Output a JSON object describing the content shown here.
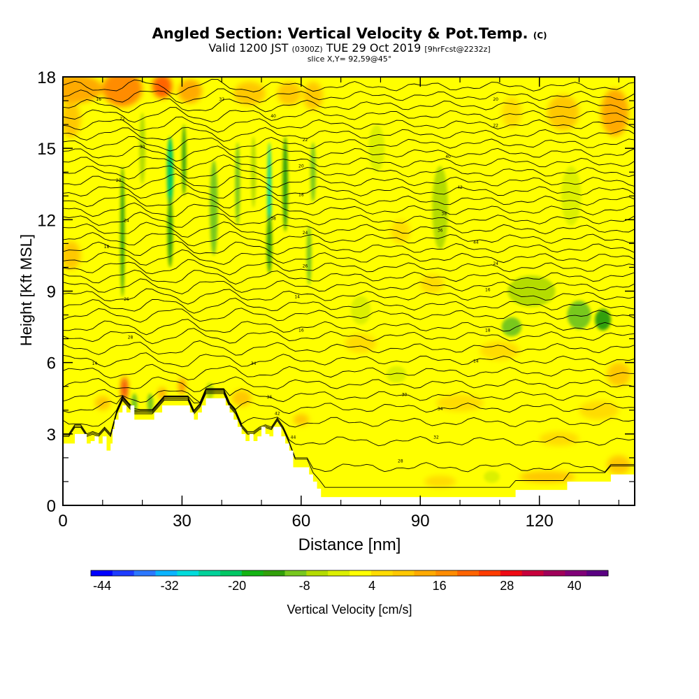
{
  "chart_data": {
    "type": "heatmap",
    "title": "Angled Section: Vertical Velocity & Pot.Temp.",
    "title_suffix": "(C)",
    "subtitle_main": "Valid 1200 JST",
    "subtitle_utc": "(0300Z)",
    "subtitle_date": "TUE 29 Oct 2019",
    "subtitle_fcst": "[9hrFcst@2232z]",
    "slice": "slice X,Y= 92,59@45°",
    "xlabel": "Distance [nm]",
    "ylabel": "Height [Kft MSL]",
    "xlim": [
      0,
      144
    ],
    "ylim": [
      0,
      18
    ],
    "xticks": [
      0,
      30,
      60,
      90,
      120
    ],
    "yticks": [
      0,
      3,
      6,
      9,
      12,
      15,
      18
    ],
    "colorbar": {
      "title": "Vertical Velocity [cm/s]",
      "labels": [
        "-44",
        "-32",
        "-20",
        "-8",
        "4",
        "16",
        "28",
        "40"
      ],
      "label_values": [
        -44,
        -32,
        -20,
        -8,
        4,
        16,
        28,
        40
      ],
      "min": -46,
      "max": 46,
      "colors": [
        "#0000ff",
        "#1e3cff",
        "#2c78ff",
        "#0ab4ff",
        "#00dcdc",
        "#00d29a",
        "#00c864",
        "#14b414",
        "#32a00a",
        "#78c81e",
        "#b4dc00",
        "#dcf000",
        "#ffff00",
        "#ffdc00",
        "#ffc800",
        "#ffaa00",
        "#ff8c00",
        "#ff6400",
        "#ff3c00",
        "#f00a14",
        "#c8003c",
        "#a0005a",
        "#800078",
        "#5a0082"
      ]
    },
    "background_w": 1,
    "updrafts": [
      {
        "x": 3,
        "y": 17.5,
        "w": 14,
        "h": 1.2,
        "v": 14
      },
      {
        "x": 15,
        "y": 17.5,
        "w": 10,
        "h": 1.5,
        "v": 16
      },
      {
        "x": 25,
        "y": 17.6,
        "w": 5,
        "h": 1.0,
        "v": 20
      },
      {
        "x": 32,
        "y": 17.4,
        "w": 6,
        "h": 1.0,
        "v": 14
      },
      {
        "x": 47,
        "y": 17.3,
        "w": 8,
        "h": 1.0,
        "v": 11
      },
      {
        "x": 57,
        "y": 17.3,
        "w": 6,
        "h": 1.0,
        "v": 10
      },
      {
        "x": 63,
        "y": 17.2,
        "w": 5,
        "h": 1.2,
        "v": 10
      },
      {
        "x": 2,
        "y": 16.2,
        "w": 5,
        "h": 1.5,
        "v": 10
      },
      {
        "x": 139,
        "y": 16.5,
        "w": 7,
        "h": 2.0,
        "v": 12
      },
      {
        "x": 126,
        "y": 16.5,
        "w": 8,
        "h": 1.5,
        "v": 8
      },
      {
        "x": 113,
        "y": 16.5,
        "w": 5,
        "h": 1.3,
        "v": 6
      },
      {
        "x": 2,
        "y": 10.5,
        "w": 5,
        "h": 1.2,
        "v": 9
      },
      {
        "x": 15.5,
        "y": 4.9,
        "w": 1.3,
        "h": 1.0,
        "v": 28
      },
      {
        "x": 30,
        "y": 5.0,
        "w": 1.6,
        "h": 0.7,
        "v": 18
      },
      {
        "x": 25,
        "y": 4.7,
        "w": 2.0,
        "h": 0.5,
        "v": 12
      },
      {
        "x": 10,
        "y": 4.3,
        "w": 4,
        "h": 0.6,
        "v": 10
      },
      {
        "x": 45,
        "y": 4.5,
        "w": 5,
        "h": 0.7,
        "v": 9
      },
      {
        "x": 60,
        "y": 3.6,
        "w": 4,
        "h": 0.5,
        "v": 8
      },
      {
        "x": 93,
        "y": 9.3,
        "w": 6,
        "h": 0.8,
        "v": 6
      },
      {
        "x": 85,
        "y": 11.5,
        "w": 5,
        "h": 1.0,
        "v": 6
      },
      {
        "x": 75,
        "y": 6.8,
        "w": 8,
        "h": 0.8,
        "v": 6
      },
      {
        "x": 110,
        "y": 6.5,
        "w": 10,
        "h": 0.8,
        "v": 6
      },
      {
        "x": 140,
        "y": 5.5,
        "w": 6,
        "h": 1.0,
        "v": 8
      },
      {
        "x": 100,
        "y": 4.3,
        "w": 12,
        "h": 0.7,
        "v": 6
      },
      {
        "x": 135,
        "y": 4.0,
        "w": 10,
        "h": 0.8,
        "v": 7
      },
      {
        "x": 125,
        "y": 2.8,
        "w": 10,
        "h": 0.6,
        "v": 6
      },
      {
        "x": 122,
        "y": 1.2,
        "w": 14,
        "h": 0.5,
        "v": 8
      },
      {
        "x": 140,
        "y": 1.7,
        "w": 6,
        "h": 0.8,
        "v": 8
      },
      {
        "x": 95,
        "y": 1.0,
        "w": 8,
        "h": 0.5,
        "v": 6
      }
    ],
    "downdrafts": [
      {
        "x": 15,
        "y": 11.5,
        "w": 1.0,
        "h": 5.5,
        "v": -12
      },
      {
        "x": 27,
        "y": 14.0,
        "w": 1.6,
        "h": 3.0,
        "v": -22
      },
      {
        "x": 27,
        "y": 11.5,
        "w": 1.3,
        "h": 3.0,
        "v": -12
      },
      {
        "x": 30.5,
        "y": 14.5,
        "w": 1.0,
        "h": 3.0,
        "v": -14
      },
      {
        "x": 38,
        "y": 12.5,
        "w": 2.0,
        "h": 4.0,
        "v": -10
      },
      {
        "x": 52,
        "y": 13.0,
        "w": 1.0,
        "h": 4.5,
        "v": -26
      },
      {
        "x": 52,
        "y": 11.0,
        "w": 1.3,
        "h": 2.5,
        "v": -14
      },
      {
        "x": 56,
        "y": 13.5,
        "w": 1.3,
        "h": 4.0,
        "v": -14
      },
      {
        "x": 63,
        "y": 14.0,
        "w": 1.3,
        "h": 2.5,
        "v": -10
      },
      {
        "x": 62,
        "y": 10.5,
        "w": 1.2,
        "h": 2.5,
        "v": -8
      },
      {
        "x": 44,
        "y": 13.5,
        "w": 1.2,
        "h": 3.5,
        "v": -8
      },
      {
        "x": 48,
        "y": 14.0,
        "w": 1.2,
        "h": 3.0,
        "v": -7
      },
      {
        "x": 20,
        "y": 15.0,
        "w": 1.5,
        "h": 3.0,
        "v": -6
      },
      {
        "x": 136,
        "y": 7.8,
        "w": 4,
        "h": 0.9,
        "v": -14
      },
      {
        "x": 130,
        "y": 8.0,
        "w": 6,
        "h": 1.2,
        "v": -8
      },
      {
        "x": 113,
        "y": 7.5,
        "w": 5,
        "h": 0.8,
        "v": -8
      },
      {
        "x": 118,
        "y": 9.0,
        "w": 12,
        "h": 1.3,
        "v": -4
      },
      {
        "x": 95,
        "y": 12.5,
        "w": 4,
        "h": 3.5,
        "v": -4
      },
      {
        "x": 79,
        "y": 15.0,
        "w": 4,
        "h": 2.0,
        "v": -3
      },
      {
        "x": 128,
        "y": 13.0,
        "w": 5,
        "h": 2.5,
        "v": -3
      },
      {
        "x": 75,
        "y": 8.2,
        "w": 5,
        "h": 1.2,
        "v": -3
      },
      {
        "x": 18,
        "y": 4.3,
        "w": 1.5,
        "h": 0.8,
        "v": -8
      },
      {
        "x": 22,
        "y": 4.3,
        "w": 1.5,
        "h": 0.8,
        "v": -8
      },
      {
        "x": 37,
        "y": 4.8,
        "w": 2.0,
        "h": 0.7,
        "v": -6
      },
      {
        "x": 84,
        "y": 5.5,
        "w": 5,
        "h": 0.7,
        "v": -3
      },
      {
        "x": 108,
        "y": 1.2,
        "w": 4,
        "h": 0.5,
        "v": -3
      }
    ],
    "terrain": [
      [
        0,
        2.6
      ],
      [
        3,
        2.6
      ],
      [
        3,
        3.0
      ],
      [
        6,
        3.0
      ],
      [
        6,
        2.6
      ],
      [
        7,
        2.6
      ],
      [
        7,
        2.7
      ],
      [
        8,
        2.7
      ],
      [
        8,
        2.9
      ],
      [
        9,
        2.9
      ],
      [
        9,
        2.6
      ],
      [
        10,
        2.6
      ],
      [
        10,
        2.9
      ],
      [
        11,
        2.9
      ],
      [
        11,
        2.3
      ],
      [
        12,
        2.3
      ],
      [
        12,
        2.6
      ],
      [
        12.5,
        2.6
      ],
      [
        12.5,
        3.2
      ],
      [
        13,
        3.2
      ],
      [
        13,
        3.6
      ],
      [
        14,
        3.6
      ],
      [
        14,
        3.9
      ],
      [
        15,
        3.9
      ],
      [
        15,
        4.2
      ],
      [
        16,
        4.2
      ],
      [
        16,
        3.9
      ],
      [
        17,
        3.9
      ],
      [
        17,
        4.2
      ],
      [
        18,
        4.2
      ],
      [
        18,
        3.6
      ],
      [
        23,
        3.6
      ],
      [
        23,
        3.9
      ],
      [
        25,
        3.9
      ],
      [
        25,
        4.2
      ],
      [
        32,
        4.2
      ],
      [
        32,
        3.9
      ],
      [
        33,
        3.9
      ],
      [
        33,
        3.6
      ],
      [
        34,
        3.6
      ],
      [
        34,
        3.9
      ],
      [
        35,
        3.9
      ],
      [
        35,
        4.2
      ],
      [
        36,
        4.2
      ],
      [
        36,
        4.5
      ],
      [
        41,
        4.5
      ],
      [
        41,
        4.2
      ],
      [
        42,
        4.2
      ],
      [
        42,
        3.9
      ],
      [
        43,
        3.9
      ],
      [
        43,
        3.6
      ],
      [
        44,
        3.6
      ],
      [
        44,
        3.3
      ],
      [
        45,
        3.3
      ],
      [
        45,
        3.0
      ],
      [
        46,
        3.0
      ],
      [
        46,
        2.7
      ],
      [
        47,
        2.7
      ],
      [
        47,
        3.0
      ],
      [
        48,
        3.0
      ],
      [
        48,
        2.7
      ],
      [
        49,
        2.7
      ],
      [
        49,
        2.9
      ],
      [
        50,
        2.9
      ],
      [
        50,
        3.3
      ],
      [
        51,
        3.3
      ],
      [
        51,
        3.0
      ],
      [
        52,
        3.0
      ],
      [
        52,
        2.9
      ],
      [
        53,
        2.9
      ],
      [
        53,
        3.3
      ],
      [
        55,
        3.3
      ],
      [
        55,
        2.9
      ],
      [
        56,
        2.9
      ],
      [
        56,
        2.6
      ],
      [
        57,
        2.6
      ],
      [
        57,
        2.3
      ],
      [
        58,
        2.3
      ],
      [
        58,
        1.6
      ],
      [
        62,
        1.6
      ],
      [
        62,
        1.3
      ],
      [
        63,
        1.3
      ],
      [
        63,
        1.0
      ],
      [
        64,
        1.0
      ],
      [
        64,
        0.7
      ],
      [
        65,
        0.7
      ],
      [
        65,
        0.35
      ],
      [
        114,
        0.35
      ],
      [
        114,
        0.65
      ],
      [
        127,
        0.65
      ],
      [
        127,
        1.0
      ],
      [
        138,
        1.0
      ],
      [
        138,
        1.3
      ],
      [
        144,
        1.3
      ]
    ],
    "isentrope_heights": [
      0.5,
      1.6,
      2.7,
      3.5,
      4.1,
      4.6,
      5.1,
      5.6,
      6.1,
      6.6,
      7.1,
      7.5,
      8.0,
      8.4,
      8.8,
      9.2,
      9.6,
      10.0,
      10.4,
      10.8,
      11.2,
      11.6,
      12.0,
      12.4,
      12.8,
      13.2,
      13.6,
      14.0,
      14.4,
      14.8,
      15.2,
      15.6,
      16.0,
      16.4,
      16.8,
      17.2,
      17.6
    ],
    "isentrope_labels": [
      "14",
      "16",
      "18",
      "20",
      "22",
      "24",
      "26",
      "28",
      "30",
      "32",
      "34",
      "36",
      "38",
      "40",
      "42",
      "44"
    ]
  }
}
